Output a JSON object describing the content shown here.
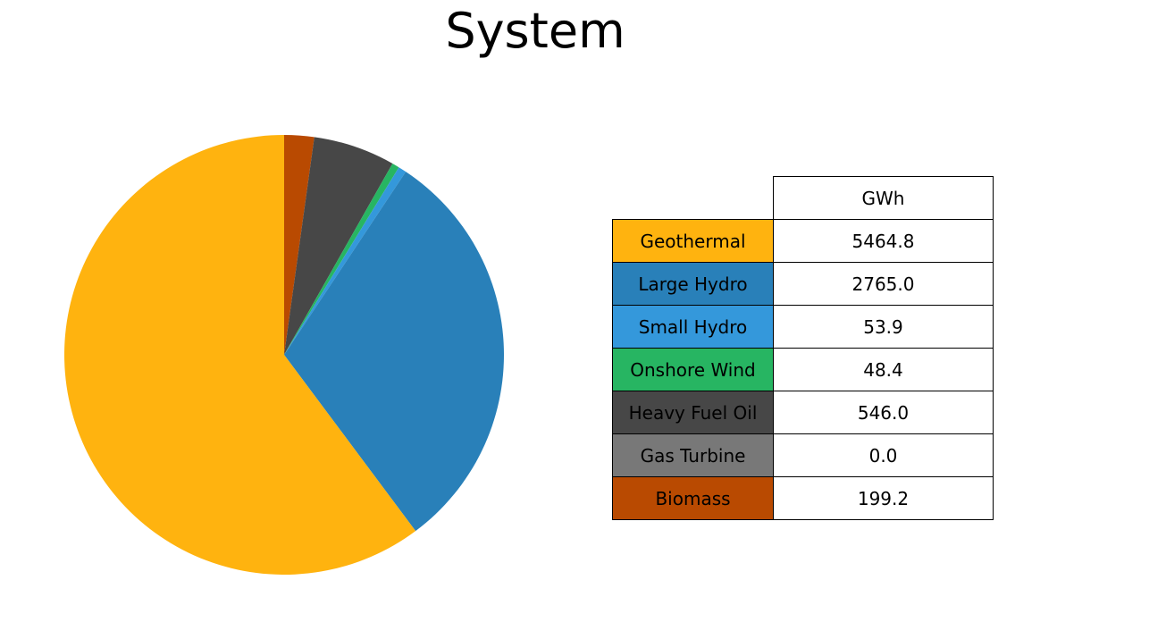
{
  "chart_data": {
    "type": "pie",
    "title": "System",
    "table_header": "GWh",
    "slices": [
      {
        "label": "Geothermal",
        "value": 5464.8,
        "display": "5464.8",
        "color": "#FFB30F"
      },
      {
        "label": "Large Hydro",
        "value": 2765.0,
        "display": "2765.0",
        "color": "#2980B9"
      },
      {
        "label": "Small Hydro",
        "value": 53.9,
        "display": "53.9",
        "color": "#3498DB"
      },
      {
        "label": "Onshore Wind",
        "value": 48.4,
        "display": "48.4",
        "color": "#27B562"
      },
      {
        "label": "Heavy Fuel Oil",
        "value": 546.0,
        "display": "546.0",
        "color": "#474747"
      },
      {
        "label": "Gas Turbine",
        "value": 0.0,
        "display": "0.0",
        "color": "#787878"
      },
      {
        "label": "Biomass",
        "value": 199.2,
        "display": "199.2",
        "color": "#B94A01"
      }
    ],
    "start_position": "top",
    "direction": "counter-clockwise order drawn from top"
  }
}
